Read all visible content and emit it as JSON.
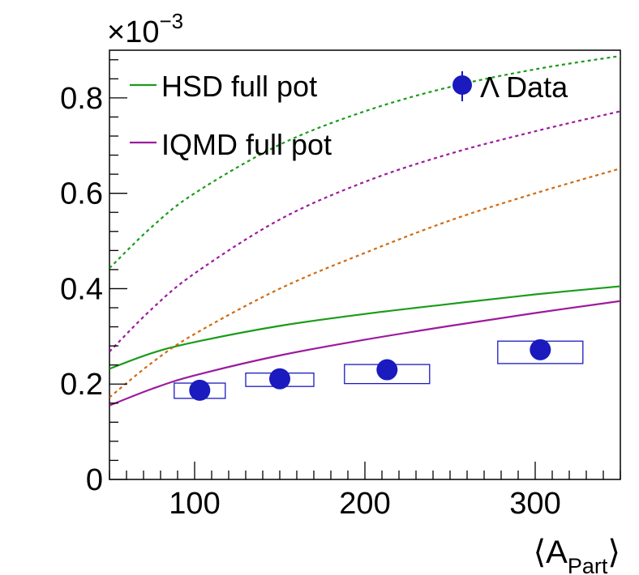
{
  "chart_data": {
    "type": "line",
    "title": "",
    "xlabel_main": "A",
    "xlabel_sub": "Part",
    "ylabel": "",
    "y_multiplier_base": "×10",
    "y_multiplier_exp": "−3",
    "xlim": [
      50,
      350
    ],
    "ylim": [
      0,
      0.9
    ],
    "x_ticks": [
      100,
      200,
      300
    ],
    "x_tick_labels": [
      "100",
      "200",
      "300"
    ],
    "y_ticks": [
      0,
      0.2,
      0.4,
      0.6,
      0.8
    ],
    "y_tick_labels": [
      "0",
      "0.2",
      "0.4",
      "0.6",
      "0.8"
    ],
    "legend_position": "top",
    "legend": [
      {
        "label": "HSD full pot",
        "color": "#1a9c1a",
        "style": "line"
      },
      {
        "label": "IQMD full pot",
        "color": "#9c1a9c",
        "style": "line"
      },
      {
        "label": "Λ Data",
        "color": "#1a1abf",
        "style": "marker"
      }
    ],
    "series": [
      {
        "name": "HSD full pot",
        "color": "#1a9c1a",
        "dashed": false,
        "x": [
          50,
          75,
          100,
          150,
          200,
          250,
          300,
          350
        ],
        "y": [
          0.232,
          0.265,
          0.288,
          0.322,
          0.347,
          0.368,
          0.388,
          0.405
        ]
      },
      {
        "name": "IQMD full pot",
        "color": "#9c1a9c",
        "dashed": false,
        "x": [
          50,
          75,
          100,
          150,
          200,
          250,
          300,
          350
        ],
        "y": [
          0.155,
          0.19,
          0.218,
          0.26,
          0.293,
          0.322,
          0.349,
          0.374
        ]
      },
      {
        "name": "HSD (dashed)",
        "color": "#1a9c1a",
        "dashed": true,
        "x": [
          50,
          75,
          100,
          150,
          200,
          250,
          300,
          350
        ],
        "y": [
          0.443,
          0.53,
          0.6,
          0.702,
          0.772,
          0.823,
          0.86,
          0.888
        ]
      },
      {
        "name": "IQMD (dashed)",
        "color": "#9c1a9c",
        "dashed": true,
        "x": [
          50,
          75,
          100,
          150,
          200,
          250,
          300,
          350
        ],
        "y": [
          0.268,
          0.358,
          0.432,
          0.545,
          0.624,
          0.683,
          0.73,
          0.772
        ]
      },
      {
        "name": "orange (dashed)",
        "color": "#d06a10",
        "dashed": true,
        "x": [
          50,
          75,
          100,
          150,
          200,
          250,
          300,
          350
        ],
        "y": [
          0.172,
          0.245,
          0.305,
          0.4,
          0.475,
          0.543,
          0.6,
          0.652
        ]
      }
    ],
    "data_points": {
      "name": "Λ Data",
      "color": "#1a1abf",
      "points": [
        {
          "x": 103,
          "y": 0.187,
          "sys_x_half": 15,
          "sys_lo": 0.17,
          "sys_hi": 0.202
        },
        {
          "x": 150,
          "y": 0.211,
          "sys_x_half": 20,
          "sys_lo": 0.195,
          "sys_hi": 0.223
        },
        {
          "x": 213,
          "y": 0.23,
          "sys_x_half": 25,
          "sys_lo": 0.201,
          "sys_hi": 0.241
        },
        {
          "x": 303,
          "y": 0.272,
          "sys_x_half": 25,
          "sys_lo": 0.243,
          "sys_hi": 0.29
        }
      ]
    }
  }
}
